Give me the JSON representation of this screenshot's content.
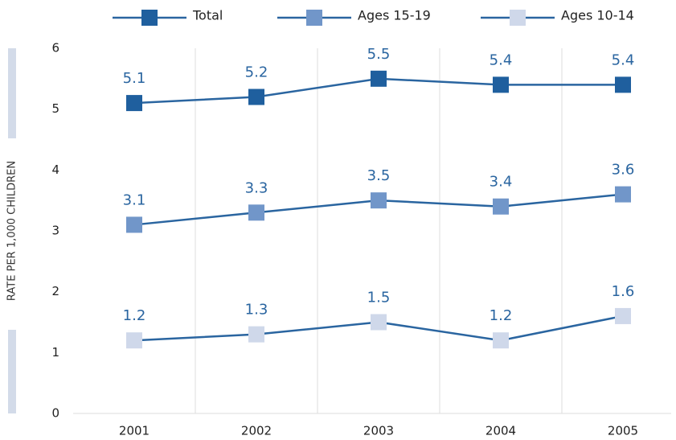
{
  "chart_data": {
    "type": "line",
    "y_label": "RATE PER 1,000 CHILDREN",
    "categories": [
      "2001",
      "2002",
      "2003",
      "2004",
      "2005"
    ],
    "series": [
      {
        "name": "Total",
        "color": "#1f5f9e",
        "values": [
          5.1,
          5.2,
          5.5,
          5.4,
          5.4
        ]
      },
      {
        "name": "Ages 15-19",
        "color": "#7196c9",
        "values": [
          3.1,
          3.3,
          3.5,
          3.4,
          3.6
        ]
      },
      {
        "name": "Ages 10-14",
        "color": "#cfd8ea",
        "values": [
          1.2,
          1.3,
          1.5,
          1.2,
          1.6
        ]
      }
    ],
    "line_color": "#2a65a0",
    "ylim": [
      0,
      6
    ],
    "yticks": [
      0,
      1,
      2,
      3,
      4,
      5,
      6
    ]
  }
}
